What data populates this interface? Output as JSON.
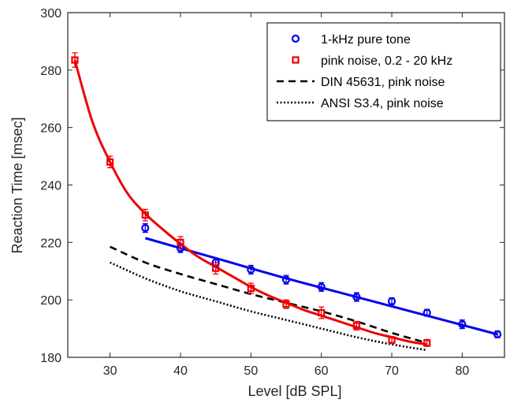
{
  "chart_data": {
    "type": "line",
    "title": "",
    "xlabel": "Level [dB SPL]",
    "ylabel": "Reaction Time [msec]",
    "xlim": [
      24,
      86
    ],
    "ylim": [
      180,
      300
    ],
    "xticks": [
      30,
      40,
      50,
      60,
      70,
      80
    ],
    "yticks": [
      180,
      200,
      220,
      240,
      260,
      280,
      300
    ],
    "xtick_labels": [
      "30",
      "40",
      "50",
      "60",
      "70",
      "80"
    ],
    "ytick_labels": [
      "180",
      "200",
      "220",
      "240",
      "260",
      "280",
      "300"
    ],
    "grid": false,
    "legend_position": "top-right",
    "series": [
      {
        "name": "1-kHz pure tone",
        "kind": "markers",
        "marker": "circle",
        "color": "#0000ee",
        "x": [
          35,
          40,
          45,
          50,
          55,
          60,
          65,
          70,
          75,
          80,
          85
        ],
        "y": [
          225,
          218,
          213,
          210.5,
          207,
          204.5,
          201,
          199.5,
          195.5,
          191.5,
          188
        ],
        "err": [
          1.5,
          1.5,
          1.5,
          1.5,
          1.5,
          1.5,
          1.5,
          1.2,
          1.2,
          1.5,
          1.2
        ]
      },
      {
        "name": "pink noise, 0.2 - 20 kHz",
        "kind": "markers",
        "marker": "square",
        "color": "#ee0000",
        "x": [
          25,
          30,
          35,
          40,
          45,
          50,
          55,
          60,
          65,
          70,
          75
        ],
        "y": [
          283.5,
          248,
          229.5,
          220,
          211,
          204,
          198.5,
          195.5,
          191,
          186,
          185
        ],
        "err": [
          2.5,
          2,
          2,
          2,
          2,
          1.8,
          1.5,
          2,
          1.5,
          1.2,
          1.2
        ]
      },
      {
        "name": "DIN 45631, pink noise",
        "kind": "line",
        "dash": "dashed",
        "color": "#000000",
        "x": [
          30,
          35,
          40,
          45,
          50,
          55,
          60,
          65,
          70,
          75
        ],
        "y": [
          218.5,
          213,
          209,
          205.5,
          202,
          199,
          196,
          192.5,
          188.5,
          185
        ]
      },
      {
        "name": "ANSI S3.4, pink noise",
        "kind": "line",
        "dash": "dotted",
        "color": "#000000",
        "x": [
          30,
          35,
          40,
          45,
          50,
          55,
          60,
          65,
          70,
          75
        ],
        "y": [
          213,
          207.5,
          203,
          199.5,
          196,
          193,
          190,
          187,
          184.5,
          182.5
        ]
      },
      {
        "name": "",
        "kind": "fit",
        "color": "#0000ee",
        "x": [
          35,
          45,
          55,
          65,
          75,
          85
        ],
        "y": [
          221.5,
          214.5,
          207.5,
          201,
          194.5,
          188
        ]
      },
      {
        "name": "",
        "kind": "fit",
        "color": "#ee0000",
        "x": [
          25,
          27.5,
          30,
          32.5,
          35,
          37.5,
          40,
          42.5,
          45,
          47.5,
          50,
          52.5,
          55,
          57.5,
          60,
          62.5,
          65,
          67.5,
          70,
          72.5,
          75
        ],
        "y": [
          283.5,
          262,
          248,
          237,
          230,
          224.5,
          219.5,
          215,
          211.5,
          208,
          204.5,
          201.5,
          199,
          196.5,
          194.5,
          192.5,
          190.5,
          188.5,
          187,
          185.5,
          184.5
        ]
      }
    ]
  }
}
